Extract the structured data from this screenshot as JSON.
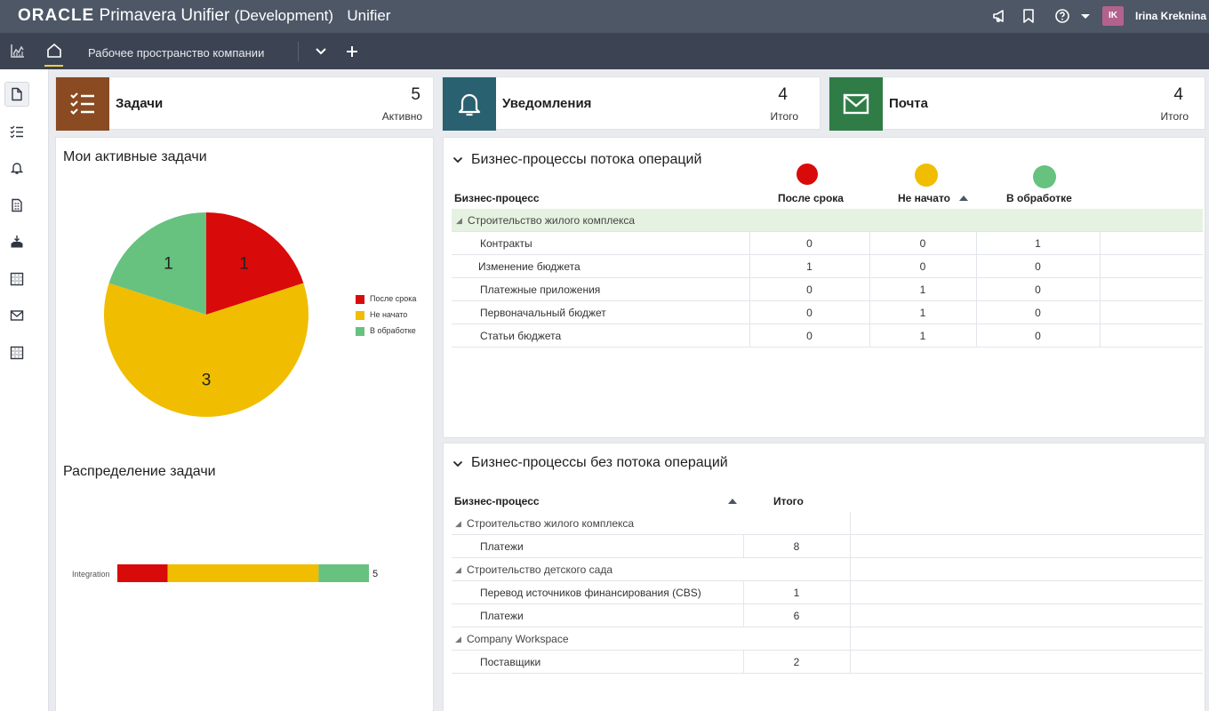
{
  "header": {
    "brand_oracle": "ORACLE",
    "brand_product": "Primavera",
    "brand_unifier": "Unifier",
    "brand_env": "(Development)",
    "app_name": "Unifier",
    "user_initials": "IK",
    "user_name": "Irina Kreknina"
  },
  "tabs": {
    "workspace_label": "Рабочее пространство компании"
  },
  "cards": [
    {
      "title": "Задачи",
      "count": "5",
      "sub": "Активно",
      "color": "#8a4a22"
    },
    {
      "title": "Уведомления",
      "count": "4",
      "sub": "Итого",
      "color": "#2a6170"
    },
    {
      "title": "Почта",
      "count": "4",
      "sub": "Итого",
      "color": "#2f7c46"
    }
  ],
  "active_tasks": {
    "title": "Мои активные задачи",
    "chart_data": {
      "type": "pie",
      "series": [
        {
          "name": "После срока",
          "value": 1,
          "color": "#d90a0a"
        },
        {
          "name": "Не начато",
          "value": 3,
          "color": "#f0bd00"
        },
        {
          "name": "В обработке",
          "value": 1,
          "color": "#67c17f"
        }
      ],
      "legend_position": "right"
    }
  },
  "distribution": {
    "title": "Распределение задачи",
    "chart_data": {
      "type": "bar",
      "orientation": "horizontal-stacked",
      "categories": [
        "Integration"
      ],
      "series": [
        {
          "name": "После срока",
          "values": [
            1
          ],
          "color": "#d90a0a"
        },
        {
          "name": "Не начато",
          "values": [
            3
          ],
          "color": "#f0bd00"
        },
        {
          "name": "В обработке",
          "values": [
            1
          ],
          "color": "#67c17f"
        }
      ],
      "total_label": "5"
    }
  },
  "workflow_bp": {
    "title": "Бизнес-процессы потока операций",
    "col_bp": "Бизнес-процесс",
    "col_late": "После срока",
    "col_not_started": "Не начато",
    "col_in_progress": "В обработке",
    "group": "Строительство жилого комплекса",
    "rows": [
      {
        "name": "Контракты",
        "late": "0",
        "not_started": "0",
        "in_progress": "1"
      },
      {
        "name": "Изменение бюджета",
        "late": "1",
        "not_started": "0",
        "in_progress": "0"
      },
      {
        "name": "Платежные приложения",
        "late": "0",
        "not_started": "1",
        "in_progress": "0"
      },
      {
        "name": "Первоначальный бюджет",
        "late": "0",
        "not_started": "1",
        "in_progress": "0"
      },
      {
        "name": "Статьи бюджета",
        "late": "0",
        "not_started": "1",
        "in_progress": "0"
      }
    ]
  },
  "nonworkflow_bp": {
    "title": "Бизнес-процессы без потока операций",
    "col_bp": "Бизнес-процесс",
    "col_total": "Итого",
    "groups": [
      {
        "name": "Строительство жилого комплекса",
        "rows": [
          {
            "name": "Платежи",
            "total": "8"
          }
        ]
      },
      {
        "name": "Строительство детского сада",
        "rows": [
          {
            "name": "Перевод источников финансирования (CBS)",
            "total": "1"
          },
          {
            "name": "Платежи",
            "total": "6"
          }
        ]
      },
      {
        "name": "Company Workspace",
        "rows": [
          {
            "name": "Поставщики",
            "total": "2"
          }
        ]
      }
    ]
  }
}
